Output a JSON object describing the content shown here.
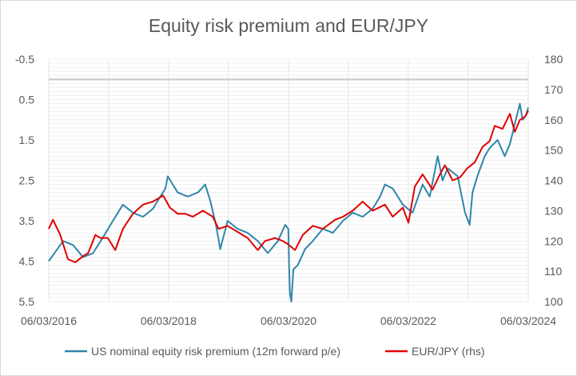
{
  "chart_data": {
    "type": "line",
    "title": "Equity risk premium and EUR/JPY",
    "grid": true,
    "legend_position": "bottom",
    "x_axis": {
      "type": "date",
      "range": [
        "2016-03-06",
        "2024-03-06"
      ],
      "tick_labels": [
        "06/03/2016",
        "06/03/2018",
        "06/03/2020",
        "06/03/2022",
        "06/03/2024"
      ]
    },
    "y_left": {
      "range": [
        -0.5,
        5.5
      ],
      "inverted": true,
      "tick_labels": [
        "-0.5",
        "0.5",
        "1.5",
        "2.5",
        "3.5",
        "4.5",
        "5.5"
      ]
    },
    "y_right": {
      "range": [
        100,
        180
      ],
      "tick_labels": [
        "180",
        "170",
        "160",
        "150",
        "140",
        "130",
        "120",
        "110",
        "100"
      ]
    },
    "series": [
      {
        "name": "US nominal equity risk premium (12m forward p/e)",
        "axis": "left",
        "color": "#2e86ab",
        "points": [
          [
            "2016-03-06",
            4.5
          ],
          [
            "2016-06-01",
            4.0
          ],
          [
            "2016-08-01",
            4.1
          ],
          [
            "2016-10-01",
            4.4
          ],
          [
            "2016-12-01",
            4.3
          ],
          [
            "2017-02-01",
            3.9
          ],
          [
            "2017-04-01",
            3.5
          ],
          [
            "2017-06-01",
            3.1
          ],
          [
            "2017-08-01",
            3.3
          ],
          [
            "2017-10-01",
            3.4
          ],
          [
            "2017-12-01",
            3.2
          ],
          [
            "2018-01-15",
            2.9
          ],
          [
            "2018-02-15",
            2.7
          ],
          [
            "2018-03-01",
            2.4
          ],
          [
            "2018-05-01",
            2.8
          ],
          [
            "2018-07-01",
            2.9
          ],
          [
            "2018-09-01",
            2.8
          ],
          [
            "2018-10-15",
            2.6
          ],
          [
            "2018-11-15",
            3.0
          ],
          [
            "2018-12-20",
            3.6
          ],
          [
            "2019-01-15",
            4.2
          ],
          [
            "2019-03-01",
            3.5
          ],
          [
            "2019-05-01",
            3.7
          ],
          [
            "2019-07-01",
            3.8
          ],
          [
            "2019-09-01",
            4.0
          ],
          [
            "2019-11-01",
            4.3
          ],
          [
            "2020-01-01",
            4.0
          ],
          [
            "2020-02-15",
            3.6
          ],
          [
            "2020-03-05",
            3.7
          ],
          [
            "2020-03-09",
            4.5
          ],
          [
            "2020-03-15",
            5.3
          ],
          [
            "2020-03-23",
            5.5
          ],
          [
            "2020-04-05",
            4.7
          ],
          [
            "2020-05-01",
            4.6
          ],
          [
            "2020-06-15",
            4.2
          ],
          [
            "2020-08-01",
            4.0
          ],
          [
            "2020-10-01",
            3.7
          ],
          [
            "2020-12-01",
            3.8
          ],
          [
            "2021-02-01",
            3.5
          ],
          [
            "2021-04-01",
            3.3
          ],
          [
            "2021-06-01",
            3.4
          ],
          [
            "2021-08-01",
            3.2
          ],
          [
            "2021-09-15",
            2.9
          ],
          [
            "2021-10-15",
            2.6
          ],
          [
            "2021-12-01",
            2.7
          ],
          [
            "2022-02-01",
            3.1
          ],
          [
            "2022-04-01",
            3.3
          ],
          [
            "2022-06-01",
            2.6
          ],
          [
            "2022-07-15",
            2.9
          ],
          [
            "2022-09-01",
            1.9
          ],
          [
            "2022-10-01",
            2.5
          ],
          [
            "2022-11-01",
            2.2
          ],
          [
            "2023-01-01",
            2.4
          ],
          [
            "2023-02-15",
            3.3
          ],
          [
            "2023-03-15",
            3.6
          ],
          [
            "2023-04-01",
            2.8
          ],
          [
            "2023-05-01",
            2.4
          ],
          [
            "2023-06-15",
            1.9
          ],
          [
            "2023-07-15",
            1.7
          ],
          [
            "2023-09-01",
            1.5
          ],
          [
            "2023-10-15",
            1.9
          ],
          [
            "2023-11-15",
            1.6
          ],
          [
            "2023-12-15",
            1.1
          ],
          [
            "2024-01-15",
            0.6
          ],
          [
            "2024-02-01",
            1.0
          ],
          [
            "2024-02-20",
            0.9
          ],
          [
            "2024-03-06",
            0.7
          ]
        ]
      },
      {
        "name": "EUR/JPY (rhs)",
        "axis": "right",
        "color": "#e00000",
        "points": [
          [
            "2016-03-06",
            124
          ],
          [
            "2016-04-01",
            127
          ],
          [
            "2016-05-15",
            122
          ],
          [
            "2016-07-01",
            114
          ],
          [
            "2016-08-15",
            113
          ],
          [
            "2016-10-01",
            115
          ],
          [
            "2016-11-01",
            116
          ],
          [
            "2016-12-15",
            122
          ],
          [
            "2017-01-15",
            121
          ],
          [
            "2017-03-01",
            121
          ],
          [
            "2017-04-15",
            117
          ],
          [
            "2017-06-01",
            124
          ],
          [
            "2017-08-01",
            129
          ],
          [
            "2017-10-01",
            132
          ],
          [
            "2017-12-01",
            133
          ],
          [
            "2018-02-01",
            135
          ],
          [
            "2018-03-15",
            131
          ],
          [
            "2018-05-01",
            129
          ],
          [
            "2018-06-15",
            129
          ],
          [
            "2018-08-01",
            128
          ],
          [
            "2018-10-01",
            130
          ],
          [
            "2018-12-01",
            128
          ],
          [
            "2019-01-05",
            124
          ],
          [
            "2019-03-01",
            125
          ],
          [
            "2019-05-01",
            123
          ],
          [
            "2019-07-01",
            121
          ],
          [
            "2019-09-01",
            117
          ],
          [
            "2019-10-15",
            120
          ],
          [
            "2019-12-15",
            121
          ],
          [
            "2020-02-01",
            120
          ],
          [
            "2020-03-01",
            119
          ],
          [
            "2020-04-15",
            117
          ],
          [
            "2020-06-01",
            122
          ],
          [
            "2020-08-01",
            125
          ],
          [
            "2020-10-01",
            124
          ],
          [
            "2020-12-15",
            127
          ],
          [
            "2021-02-01",
            128
          ],
          [
            "2021-04-01",
            130
          ],
          [
            "2021-06-01",
            133
          ],
          [
            "2021-08-01",
            130
          ],
          [
            "2021-10-15",
            132
          ],
          [
            "2021-12-01",
            128
          ],
          [
            "2022-02-01",
            131
          ],
          [
            "2022-03-07",
            126
          ],
          [
            "2022-04-15",
            138
          ],
          [
            "2022-06-01",
            142
          ],
          [
            "2022-08-01",
            137
          ],
          [
            "2022-09-15",
            142
          ],
          [
            "2022-10-15",
            145
          ],
          [
            "2022-12-01",
            140
          ],
          [
            "2023-01-15",
            141
          ],
          [
            "2023-03-01",
            144
          ],
          [
            "2023-04-15",
            146
          ],
          [
            "2023-06-01",
            151
          ],
          [
            "2023-07-15",
            153
          ],
          [
            "2023-08-15",
            158
          ],
          [
            "2023-10-01",
            157
          ],
          [
            "2023-11-15",
            162
          ],
          [
            "2023-12-15",
            156
          ],
          [
            "2024-01-15",
            160
          ],
          [
            "2024-02-15",
            161
          ],
          [
            "2024-03-06",
            163
          ]
        ]
      }
    ]
  },
  "legend": {
    "erp_label": "US nominal equity risk premium (12m forward p/e)",
    "eurjpy_label": "EUR/JPY (rhs)"
  }
}
